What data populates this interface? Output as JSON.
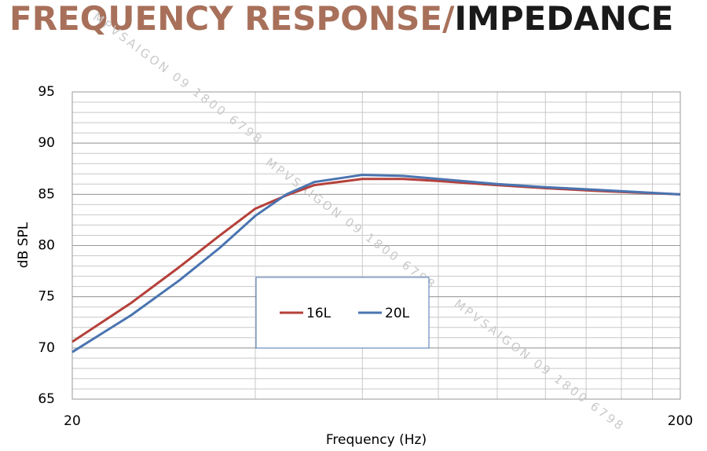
{
  "chart_data": {
    "type": "line",
    "title": [
      "FREQUENCY RESPONSE/",
      "IMPEDANCE"
    ],
    "title_colors": [
      "#a8705a",
      "#1a1a1a"
    ],
    "watermark": "MPVSAIGON 09 1800 6798",
    "xlabel": "Frequency (Hz)",
    "ylabel": "dB SPL",
    "x": [
      20,
      25,
      30,
      35,
      40,
      45,
      50,
      60,
      70,
      80,
      100,
      120,
      150,
      200
    ],
    "series": [
      {
        "name": "16L",
        "color": "#b5403a",
        "values": [
          70.6,
          74.4,
          77.9,
          81.0,
          83.6,
          84.9,
          85.9,
          86.5,
          86.5,
          86.3,
          85.9,
          85.6,
          85.3,
          85.0
        ]
      },
      {
        "name": "20L",
        "color": "#4a74b0",
        "values": [
          69.6,
          73.2,
          76.6,
          79.8,
          82.9,
          85.0,
          86.2,
          86.9,
          86.8,
          86.5,
          86.0,
          85.7,
          85.4,
          85.0
        ]
      }
    ],
    "xscale": "log",
    "xlim": [
      20,
      200
    ],
    "xticks": [
      20,
      200
    ],
    "x_minor_grid": [
      40,
      60,
      80,
      100,
      120,
      140,
      160,
      180
    ],
    "ylim": [
      65,
      95
    ],
    "yticks": [
      65,
      70,
      75,
      80,
      85,
      90,
      95
    ],
    "y_minor_step": 1,
    "grid": true
  }
}
